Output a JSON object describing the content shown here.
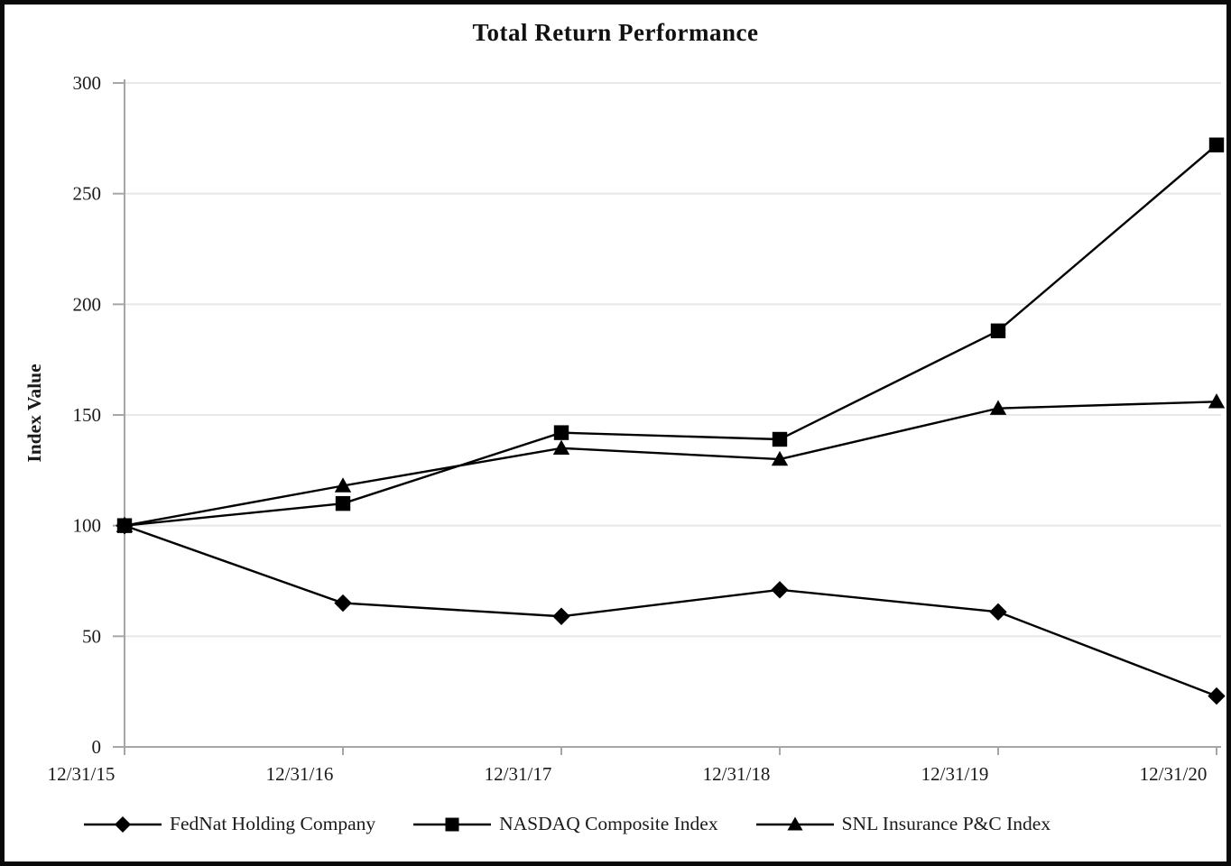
{
  "figure": {
    "title": "Total Return Performance"
  },
  "chart_data": {
    "type": "line",
    "title": "Total Return Performance",
    "xlabel": "",
    "ylabel": "Index Value",
    "categories": [
      "12/31/15",
      "12/31/16",
      "12/31/17",
      "12/31/18",
      "12/31/19",
      "12/31/20"
    ],
    "series": [
      {
        "name": "FedNat Holding Company",
        "marker": "diamond",
        "values": [
          100,
          65,
          59,
          71,
          61,
          23
        ]
      },
      {
        "name": "SNL Insurance P&C Index",
        "marker": "triangle",
        "values": [
          100,
          118,
          135,
          130,
          153,
          156
        ]
      },
      {
        "name": "NASDAQ Composite Index",
        "marker": "square",
        "values": [
          100,
          110,
          142,
          139,
          188,
          272
        ]
      }
    ],
    "legend_order": [
      0,
      2,
      1
    ],
    "ylim": [
      0,
      300
    ],
    "yticks": [
      0,
      50,
      100,
      150,
      200,
      250,
      300
    ],
    "grid": true,
    "legend_position": "bottom",
    "colors": {
      "line": "#000000",
      "marker": "#000000",
      "axis": "#a6a6a6",
      "gridline": "#e8e8e8",
      "text": "#1a1a1a"
    }
  }
}
